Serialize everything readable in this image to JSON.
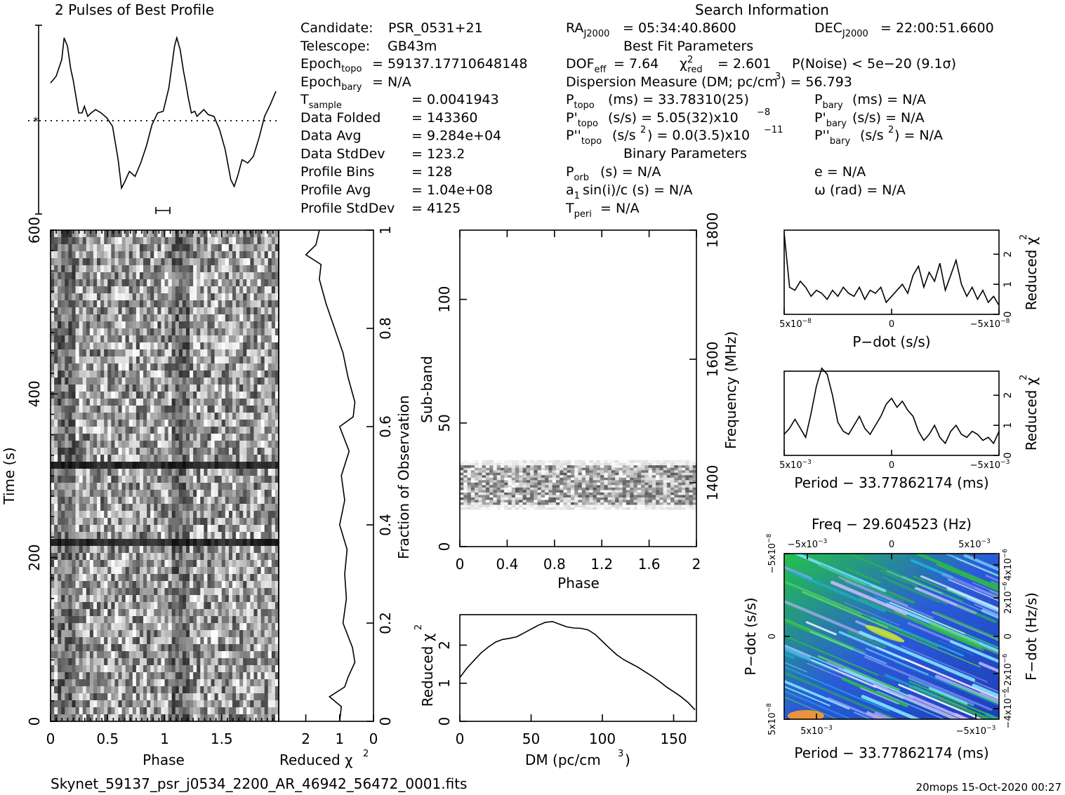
{
  "title": "2 Pulses of Best Profile",
  "search_header": "Search Information",
  "footer_left": "Skynet_59137_psr_j0534_2200_AR_46942_56472_0001.fits",
  "footer_right": "20mops 15-Oct-2020 00:27",
  "info": {
    "candidate_label": "Candidate:",
    "candidate_value": "PSR_0531+21",
    "telescope_label": "Telescope:",
    "telescope_value": "GB43m",
    "epoch_topo": "= 59137.17710648148",
    "epoch_bary": "= N/A",
    "rows": [
      {
        "label": "T",
        "sub": "sample",
        "value": "=   0.0041943"
      },
      {
        "label": "Data Folded",
        "sub": "",
        "value": "=   143360"
      },
      {
        "label": "Data Avg",
        "sub": "",
        "value": "=   9.284e+04"
      },
      {
        "label": "Data StdDev",
        "sub": "",
        "value": "=   123.2"
      },
      {
        "label": "Profile Bins",
        "sub": "",
        "value": "=   128"
      },
      {
        "label": "Profile Avg",
        "sub": "",
        "value": "=   1.04e+08"
      },
      {
        "label": "Profile StdDev",
        "sub": "",
        "value": "=   4125"
      }
    ],
    "ra": "= 05:34:40.8600",
    "dec": "= 22:00:51.6600",
    "best_fit_header": "Best Fit Parameters",
    "dof_eff": "= 7.64",
    "chi2_red": "= 2.601",
    "p_noise": "P(Noise) < 5e−20   (9.1σ)",
    "dm_line": "Dispersion Measure (DM; pc/cm",
    "dm_value": ") = 56.793",
    "p_topo": "(ms) =  33.78310(25)",
    "pd_topo": "(s/s) =   5.05(32)x10",
    "pd_exp": "−8",
    "pdd_topo": "(s/s",
    "pdd_rest": ") = 0.0(3.5)x10",
    "pdd_exp": "−11",
    "p_bary": "(ms) = N/A",
    "pd_bary": "(s/s) = N/A",
    "pdd_bary": ") = N/A",
    "binary_header": "Binary Parameters",
    "p_orb": "(s) = N/A",
    "a1sini": "sin(i)/c (s) = N/A",
    "t_peri": "= N/A",
    "ecc": "e = N/A",
    "omega": "ω (rad) = N/A"
  },
  "chart_data": [
    {
      "type": "line",
      "name": "profile",
      "title": "2 Pulses of Best Profile",
      "x": [
        0.0,
        0.05,
        0.1,
        0.12,
        0.15,
        0.18,
        0.2,
        0.22,
        0.25,
        0.28,
        0.3,
        0.33,
        0.36,
        0.4,
        0.45,
        0.5,
        0.55,
        0.6,
        0.63,
        0.66,
        0.7,
        0.75,
        0.8,
        0.85,
        0.9,
        0.95,
        1.0,
        1.05,
        1.1,
        1.12,
        1.15,
        1.18,
        1.2,
        1.22,
        1.25,
        1.28,
        1.3,
        1.33,
        1.36,
        1.4,
        1.45,
        1.5,
        1.55,
        1.6,
        1.63,
        1.66,
        1.7,
        1.75,
        1.8,
        1.85,
        1.9,
        1.95,
        2.0
      ],
      "y": [
        0.68,
        0.72,
        0.82,
        0.95,
        0.9,
        0.76,
        0.7,
        0.62,
        0.5,
        0.5,
        0.54,
        0.48,
        0.5,
        0.52,
        0.5,
        0.47,
        0.42,
        0.22,
        0.05,
        0.09,
        0.15,
        0.12,
        0.2,
        0.3,
        0.43,
        0.5,
        0.51,
        0.65,
        0.9,
        0.95,
        0.88,
        0.75,
        0.68,
        0.6,
        0.5,
        0.51,
        0.48,
        0.5,
        0.52,
        0.49,
        0.48,
        0.4,
        0.28,
        0.1,
        0.06,
        0.12,
        0.22,
        0.2,
        0.24,
        0.35,
        0.48,
        0.55,
        0.63
      ],
      "mean": 0.5,
      "xlim": [
        0,
        2
      ]
    },
    {
      "type": "heatmap",
      "name": "time-phase",
      "xlabel": "Phase",
      "ylabel": "Time (s)",
      "x_ticks": [
        "0",
        "0.5",
        "1",
        "1.5"
      ],
      "y_ticks": [
        "0",
        "200",
        "400",
        "600"
      ],
      "xlim": [
        0,
        2
      ],
      "ylim": [
        0,
        600
      ]
    },
    {
      "type": "line",
      "name": "time-chi2",
      "xlabel": "Reduced χ",
      "x_ticks": [
        "2",
        "1",
        "0"
      ],
      "y2label": "Fraction of Observation",
      "y2_ticks": [
        "0",
        "0.2",
        "0.4",
        "0.6",
        "0.8",
        "1"
      ],
      "fraction": [
        0.0,
        0.03,
        0.05,
        0.07,
        0.09,
        0.12,
        0.15,
        0.2,
        0.25,
        0.3,
        0.35,
        0.4,
        0.45,
        0.5,
        0.55,
        0.6,
        0.62,
        0.65,
        0.7,
        0.75,
        0.8,
        0.85,
        0.9,
        0.93,
        0.95,
        0.97,
        1.0
      ],
      "chi2": [
        1.0,
        0.95,
        1.3,
        0.85,
        0.75,
        0.55,
        0.62,
        0.9,
        0.8,
        0.85,
        0.78,
        1.0,
        0.85,
        0.95,
        0.72,
        1.0,
        0.6,
        0.55,
        0.75,
        0.9,
        1.15,
        1.4,
        1.6,
        1.55,
        2.0,
        1.7,
        1.6
      ],
      "xlim": [
        2.8,
        0
      ]
    },
    {
      "type": "heatmap",
      "name": "subband-phase",
      "xlabel": "Phase",
      "ylabel": "Sub-band",
      "y2label": "Frequency (MHz)",
      "x_ticks": [
        "0",
        "0.4",
        "0.8",
        "1.2",
        "1.6",
        "2"
      ],
      "y_ticks": [
        "0",
        "50",
        "100"
      ],
      "y2_ticks": [
        "1400",
        "1600",
        "1800"
      ],
      "xlim": [
        0,
        2
      ],
      "ylim": [
        0,
        128
      ],
      "band": [
        15,
        35
      ]
    },
    {
      "type": "line",
      "name": "dm-chi2",
      "xlabel": "DM (pc/cm",
      "ylabel": "Reduced χ",
      "x_ticks": [
        "0",
        "50",
        "100",
        "150"
      ],
      "y_ticks": [
        "0",
        "1",
        "2"
      ],
      "x": [
        0,
        5,
        10,
        15,
        20,
        25,
        30,
        35,
        40,
        45,
        50,
        55,
        60,
        65,
        70,
        75,
        80,
        85,
        90,
        95,
        100,
        105,
        110,
        115,
        120,
        125,
        130,
        135,
        140,
        145,
        150,
        155,
        160,
        165
      ],
      "y": [
        1.15,
        1.4,
        1.6,
        1.8,
        1.95,
        2.08,
        2.15,
        2.18,
        2.22,
        2.32,
        2.42,
        2.52,
        2.6,
        2.62,
        2.55,
        2.48,
        2.45,
        2.44,
        2.4,
        2.28,
        2.1,
        1.92,
        1.75,
        1.62,
        1.52,
        1.42,
        1.3,
        1.18,
        1.05,
        0.9,
        0.78,
        0.65,
        0.5,
        0.3
      ],
      "xlim": [
        0,
        166
      ],
      "ylim": [
        0,
        2.8
      ]
    },
    {
      "type": "line",
      "name": "pdot-chi2",
      "xlabel": "P−dot (s/s)",
      "y2label": "Reduced χ",
      "x_ticks": [
        "5x10",
        "0",
        "−5x10"
      ],
      "x_tick_exp": "−8",
      "y2_ticks": [
        "0",
        "1",
        "2"
      ],
      "x": [
        -1.0,
        -0.95,
        -0.9,
        -0.85,
        -0.8,
        -0.75,
        -0.7,
        -0.65,
        -0.6,
        -0.55,
        -0.5,
        -0.45,
        -0.4,
        -0.35,
        -0.3,
        -0.25,
        -0.2,
        -0.15,
        -0.1,
        -0.05,
        0.0,
        0.05,
        0.1,
        0.15,
        0.2,
        0.25,
        0.3,
        0.35,
        0.4,
        0.45,
        0.5,
        0.55,
        0.6,
        0.65,
        0.7,
        0.75,
        0.8,
        0.85,
        0.9,
        0.95,
        1.0
      ],
      "y": [
        2.7,
        0.9,
        0.8,
        1.1,
        0.9,
        0.6,
        0.8,
        0.7,
        0.5,
        0.8,
        0.6,
        0.9,
        0.7,
        0.6,
        0.9,
        0.5,
        0.8,
        0.7,
        0.9,
        0.4,
        0.6,
        0.8,
        1.0,
        0.7,
        1.3,
        1.6,
        0.9,
        1.4,
        1.1,
        1.7,
        0.8,
        1.3,
        1.8,
        1.0,
        0.6,
        0.9,
        0.5,
        0.8,
        0.4,
        0.6,
        0.3
      ],
      "xlim": [
        -1,
        1
      ],
      "ylim": [
        0,
        2.8
      ]
    },
    {
      "type": "line",
      "name": "period-chi2",
      "xlabel": "Period − 33.77862174 (ms)",
      "y2label": "Reduced χ",
      "x_ticks": [
        "5x10",
        "0",
        "−5x10"
      ],
      "x_tick_exp": "−3",
      "y2_ticks": [
        "0",
        "1",
        "2"
      ],
      "x": [
        -1.0,
        -0.95,
        -0.9,
        -0.85,
        -0.8,
        -0.75,
        -0.7,
        -0.65,
        -0.6,
        -0.55,
        -0.5,
        -0.45,
        -0.4,
        -0.35,
        -0.3,
        -0.25,
        -0.2,
        -0.15,
        -0.1,
        -0.05,
        0.0,
        0.05,
        0.1,
        0.15,
        0.2,
        0.25,
        0.3,
        0.35,
        0.4,
        0.45,
        0.5,
        0.55,
        0.6,
        0.65,
        0.7,
        0.75,
        0.8,
        0.85,
        0.9,
        0.95,
        1.0
      ],
      "y": [
        0.7,
        0.9,
        1.2,
        0.9,
        0.6,
        1.4,
        2.3,
        2.9,
        2.7,
        2.0,
        1.1,
        0.8,
        0.7,
        1.0,
        1.3,
        0.9,
        0.7,
        1.0,
        1.3,
        1.7,
        1.9,
        1.6,
        1.8,
        1.5,
        1.3,
        0.8,
        0.5,
        0.7,
        1.0,
        0.6,
        0.4,
        0.8,
        1.0,
        0.7,
        0.6,
        0.8,
        0.7,
        0.5,
        0.6,
        0.4,
        0.8
      ],
      "xlim": [
        -1,
        1
      ],
      "ylim": [
        0,
        2.8
      ]
    },
    {
      "type": "heatmap",
      "name": "period-pdot",
      "title": "Freq − 29.604523 (Hz)",
      "xlabel": "Period − 33.77862174 (ms)",
      "ylabel": "P−dot (s/s)",
      "y2label": "F−dot (Hz/s)",
      "x_ticks": [
        "5x10",
        "−5x10"
      ],
      "x_tick_exp": "−3",
      "top_ticks": [
        "−5x10",
        "0",
        "5x10"
      ],
      "y_ticks": [
        "5x10",
        "0",
        "−5x10"
      ],
      "y_tick_exp": "−8",
      "y2_ticks": [
        "−4x10",
        "−2x10",
        "0",
        "2x10",
        "4x10"
      ],
      "y2_tick_exp": "−6"
    }
  ]
}
